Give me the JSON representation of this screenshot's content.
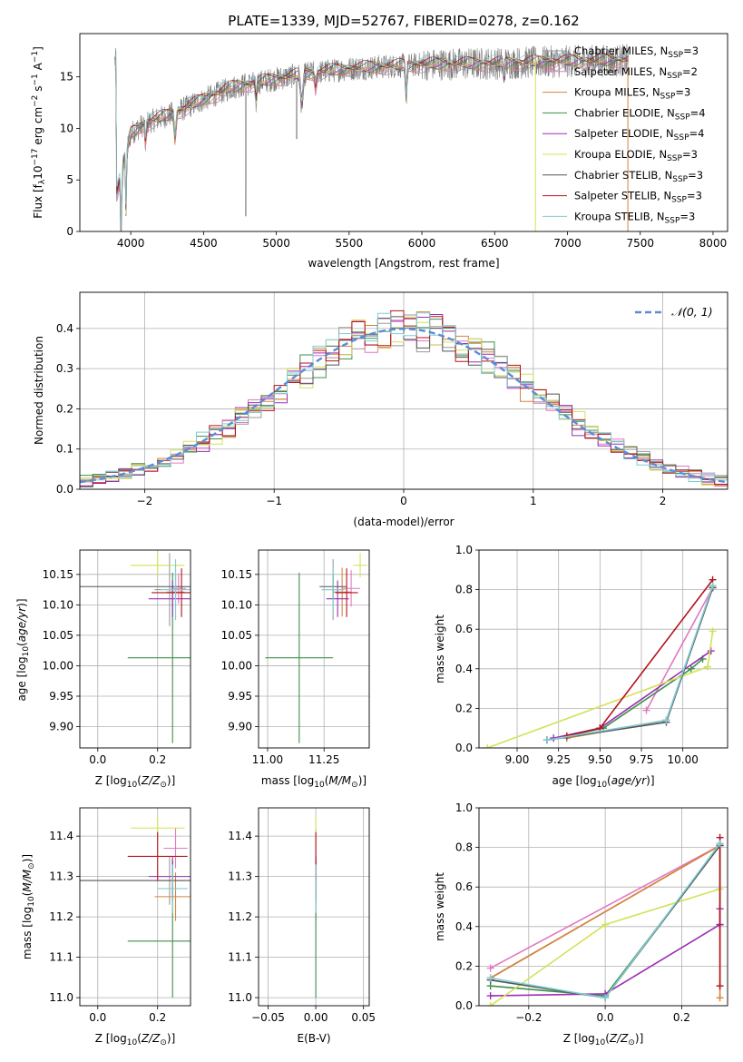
{
  "figure": {
    "title": "PLATE=1339, MJD=52767, FIBERID=0278, z=0.162"
  },
  "colors": {
    "chabrier_miles": "#9a9a9a",
    "salpeter_miles": "#e377c2",
    "kroupa_miles": "#d6843c",
    "chabrier_elodie": "#3f8f4a",
    "salpeter_elodie": "#9a2fb4",
    "kroupa_elodie": "#d4e157",
    "chabrier_stelib": "#555555",
    "salpeter_stelib": "#b5121b",
    "kroupa_stelib": "#7fcdd6",
    "gauss": "#5b8bd9",
    "grid": "#b0b0b0"
  },
  "chart_data": [
    {
      "id": "spectrum",
      "type": "line",
      "xlabel": "wavelength [Angstrom, rest frame]",
      "ylabel_main": "Flux [f",
      "ylabel_rest": "10",
      "ylim": [
        0,
        19.2
      ],
      "xlim": [
        3650,
        8100
      ],
      "xticks": [
        4000,
        4500,
        5000,
        5500,
        6000,
        6500,
        7000,
        7500,
        8000
      ],
      "yticks": [
        0,
        5,
        10,
        15
      ],
      "grid": false,
      "legend_position": "right",
      "legend": [
        {
          "name": "Chabrier MILES",
          "nssp": "3",
          "color_key": "chabrier_miles"
        },
        {
          "name": "Salpeter MILES",
          "nssp": "2",
          "color_key": "salpeter_miles"
        },
        {
          "name": "Kroupa MILES",
          "nssp": "3",
          "color_key": "kroupa_miles"
        },
        {
          "name": "Chabrier ELODIE",
          "nssp": "4",
          "color_key": "chabrier_elodie"
        },
        {
          "name": "Salpeter ELODIE",
          "nssp": "4",
          "color_key": "salpeter_elodie"
        },
        {
          "name": "Kroupa ELODIE",
          "nssp": "3",
          "color_key": "kroupa_elodie"
        },
        {
          "name": "Chabrier STELIB",
          "nssp": "3",
          "color_key": "chabrier_stelib"
        },
        {
          "name": "Salpeter STELIB",
          "nssp": "3",
          "color_key": "salpeter_stelib"
        },
        {
          "name": "Kroupa STELIB",
          "nssp": "3",
          "color_key": "kroupa_stelib"
        }
      ],
      "continuum": [
        [
          3900,
          3.5
        ],
        [
          3950,
          6.5
        ],
        [
          4000,
          9.5
        ],
        [
          4100,
          10.5
        ],
        [
          4300,
          11.5
        ],
        [
          4500,
          12.8
        ],
        [
          4700,
          14.0
        ],
        [
          5000,
          14.8
        ],
        [
          5200,
          15.3
        ],
        [
          5500,
          15.8
        ],
        [
          6000,
          16.2
        ],
        [
          6500,
          16.3
        ],
        [
          7000,
          16.5
        ],
        [
          7400,
          16.6
        ]
      ]
    },
    {
      "id": "residuals",
      "type": "line",
      "xlabel": "(data-model)/error",
      "ylabel": "Normed distribution",
      "xlim": [
        -2.5,
        2.5
      ],
      "ylim": [
        0,
        0.49
      ],
      "xticks": [
        -2,
        -1,
        0,
        1,
        2
      ],
      "yticks": [
        0.0,
        0.1,
        0.2,
        0.3,
        0.4
      ],
      "grid": true,
      "legend_position": "top-right",
      "legend_label": "𝒩(0, 1)",
      "gauss_mu": 0,
      "gauss_sigma": 1,
      "bin_width": 0.1
    },
    {
      "id": "age_vs_Z",
      "type": "scatter",
      "xlabel": "Z [log",
      "ylabel": "age  [log",
      "xlim": [
        -0.06,
        0.31
      ],
      "ylim": [
        9.865,
        10.19
      ],
      "xticks": [
        0.0,
        0.2
      ],
      "yticks": [
        9.9,
        9.95,
        10.0,
        10.05,
        10.1,
        10.15
      ],
      "grid": true,
      "points": [
        {
          "color_key": "chabrier_miles",
          "x": 0.24,
          "xerr": 0.05,
          "y": 10.125,
          "yerr": 0.06
        },
        {
          "color_key": "salpeter_miles",
          "x": 0.27,
          "xerr": 0.025,
          "y": 10.127,
          "yerr": 0.025
        },
        {
          "color_key": "kroupa_miles",
          "x": 0.26,
          "xerr": 0.03,
          "y": 10.121,
          "yerr": 0.045
        },
        {
          "color_key": "chabrier_elodie",
          "x": 0.25,
          "xerr": 0.15,
          "y": 10.013,
          "yerr": 0.14
        },
        {
          "color_key": "salpeter_elodie",
          "x": 0.25,
          "xerr": 0.08,
          "y": 10.11,
          "yerr": 0.03
        },
        {
          "color_key": "kroupa_elodie",
          "x": 0.2,
          "xerr": 0.09,
          "y": 10.165,
          "yerr": 0.02
        },
        {
          "color_key": "chabrier_stelib",
          "x": 0.26,
          "xerr": 0.42,
          "y": 10.13,
          "yerr": 0.02
        },
        {
          "color_key": "salpeter_stelib",
          "x": 0.28,
          "xerr": 0.1,
          "y": 10.12,
          "yerr": 0.04
        },
        {
          "color_key": "kroupa_stelib",
          "x": 0.26,
          "xerr": 0.05,
          "y": 10.125,
          "yerr": 0.05
        }
      ]
    },
    {
      "id": "age_vs_mass",
      "type": "scatter",
      "xlabel": "mass [log",
      "xlim": [
        10.96,
        11.45
      ],
      "ylim": [
        9.865,
        10.19
      ],
      "xticks": [
        11.0,
        11.25
      ],
      "yticks": [
        9.9,
        9.95,
        10.0,
        10.05,
        10.1,
        10.15
      ],
      "grid": true,
      "points": [
        {
          "color_key": "chabrier_miles",
          "x": 11.29,
          "xerr": 0.05,
          "y": 10.125,
          "yerr": 0.05
        },
        {
          "color_key": "salpeter_miles",
          "x": 11.37,
          "xerr": 0.04,
          "y": 10.127,
          "yerr": 0.03
        },
        {
          "color_key": "kroupa_miles",
          "x": 11.33,
          "xerr": 0.04,
          "y": 10.121,
          "yerr": 0.04
        },
        {
          "color_key": "chabrier_elodie",
          "x": 11.14,
          "xerr": 0.15,
          "y": 10.013,
          "yerr": 0.14
        },
        {
          "color_key": "salpeter_elodie",
          "x": 11.31,
          "xerr": 0.05,
          "y": 10.11,
          "yerr": 0.03
        },
        {
          "color_key": "kroupa_elodie",
          "x": 11.41,
          "xerr": 0.03,
          "y": 10.165,
          "yerr": 0.02
        },
        {
          "color_key": "chabrier_stelib",
          "x": 11.29,
          "xerr": 0.06,
          "y": 10.13,
          "yerr": 0.02
        },
        {
          "color_key": "salpeter_stelib",
          "x": 11.35,
          "xerr": 0.05,
          "y": 10.12,
          "yerr": 0.04
        },
        {
          "color_key": "kroupa_stelib",
          "x": 11.29,
          "xerr": 0.05,
          "y": 10.125,
          "yerr": 0.04
        }
      ]
    },
    {
      "id": "weight_vs_age",
      "type": "line",
      "xlabel": "age  [log",
      "ylabel": "mass weight",
      "xlim": [
        8.77,
        10.27
      ],
      "ylim": [
        0,
        1.0
      ],
      "xticks": [
        9.0,
        9.25,
        9.5,
        9.75,
        10.0
      ],
      "yticks": [
        0.0,
        0.2,
        0.4,
        0.6,
        0.8,
        1.0
      ],
      "grid": true,
      "series": [
        {
          "color_key": "chabrier_miles",
          "x": [
            9.3,
            9.9,
            10.18
          ],
          "y": [
            0.05,
            0.14,
            0.81
          ]
        },
        {
          "color_key": "salpeter_miles",
          "x": [
            9.78,
            10.18
          ],
          "y": [
            0.19,
            0.81
          ]
        },
        {
          "color_key": "kroupa_miles",
          "x": [
            9.3,
            9.9,
            10.18
          ],
          "y": [
            0.05,
            0.14,
            0.81
          ]
        },
        {
          "color_key": "chabrier_elodie",
          "x": [
            9.18,
            9.52,
            10.05,
            10.12
          ],
          "y": [
            0.04,
            0.1,
            0.4,
            0.45
          ]
        },
        {
          "color_key": "salpeter_elodie",
          "x": [
            9.22,
            9.5,
            10.17
          ],
          "y": [
            0.05,
            0.1,
            0.49
          ]
        },
        {
          "color_key": "kroupa_elodie",
          "x": [
            8.82,
            10.15,
            10.18
          ],
          "y": [
            0.0,
            0.41,
            0.59
          ]
        },
        {
          "color_key": "chabrier_stelib",
          "x": [
            9.18,
            9.9,
            10.18
          ],
          "y": [
            0.04,
            0.13,
            0.81
          ]
        },
        {
          "color_key": "salpeter_stelib",
          "x": [
            9.3,
            9.5,
            10.18
          ],
          "y": [
            0.06,
            0.1,
            0.85
          ]
        },
        {
          "color_key": "kroupa_stelib",
          "x": [
            9.18,
            9.9,
            10.18
          ],
          "y": [
            0.04,
            0.14,
            0.82
          ]
        }
      ]
    },
    {
      "id": "mass_vs_Z",
      "type": "scatter",
      "xlabel": "Z [log",
      "ylabel": "mass [log",
      "xlim": [
        -0.06,
        0.31
      ],
      "ylim": [
        10.98,
        11.47
      ],
      "xticks": [
        0.0,
        0.2
      ],
      "yticks": [
        11.0,
        11.1,
        11.2,
        11.3,
        11.4
      ],
      "grid": true,
      "points": [
        {
          "color_key": "chabrier_miles",
          "x": 0.24,
          "xerr": 0.05,
          "y": 11.29,
          "yerr": 0.06
        },
        {
          "color_key": "salpeter_miles",
          "x": 0.26,
          "xerr": 0.04,
          "y": 11.37,
          "yerr": 0.05
        },
        {
          "color_key": "kroupa_miles",
          "x": 0.26,
          "xerr": 0.07,
          "y": 11.25,
          "yerr": 0.06
        },
        {
          "color_key": "chabrier_elodie",
          "x": 0.25,
          "xerr": 0.15,
          "y": 11.14,
          "yerr": 0.14
        },
        {
          "color_key": "salpeter_elodie",
          "x": 0.25,
          "xerr": 0.08,
          "y": 11.3,
          "yerr": 0.05
        },
        {
          "color_key": "kroupa_elodie",
          "x": 0.2,
          "xerr": 0.09,
          "y": 11.42,
          "yerr": 0.03
        },
        {
          "color_key": "chabrier_stelib",
          "x": 0.25,
          "xerr": 0.42,
          "y": 11.29,
          "yerr": 0.05
        },
        {
          "color_key": "salpeter_stelib",
          "x": 0.2,
          "xerr": 0.1,
          "y": 11.35,
          "yerr": 0.06
        },
        {
          "color_key": "kroupa_stelib",
          "x": 0.25,
          "xerr": 0.05,
          "y": 11.27,
          "yerr": 0.06
        }
      ]
    },
    {
      "id": "mass_vs_ebv",
      "type": "scatter",
      "xlabel": "E(B-V)",
      "xlim": [
        -0.06,
        0.056
      ],
      "ylim": [
        10.98,
        11.47
      ],
      "xticks": [
        -0.05,
        0.0,
        0.05
      ],
      "xtick_labels": [
        "−0.05",
        "0.00",
        "0.05"
      ],
      "yticks": [
        11.0,
        11.1,
        11.2,
        11.3,
        11.4
      ],
      "grid": true,
      "points": [
        {
          "color_key": "chabrier_miles",
          "x": 0.0,
          "y": 11.29,
          "yerr": 0.06
        },
        {
          "color_key": "salpeter_miles",
          "x": 0.0,
          "y": 11.37,
          "yerr": 0.05
        },
        {
          "color_key": "kroupa_miles",
          "x": 0.0,
          "y": 11.25,
          "yerr": 0.06
        },
        {
          "color_key": "chabrier_elodie",
          "x": 0.0,
          "y": 11.14,
          "yerr": 0.14
        },
        {
          "color_key": "salpeter_elodie",
          "x": 0.0,
          "y": 11.3,
          "yerr": 0.05
        },
        {
          "color_key": "kroupa_elodie",
          "x": 0.0,
          "y": 11.42,
          "yerr": 0.03
        },
        {
          "color_key": "chabrier_stelib",
          "x": 0.0,
          "y": 11.29,
          "yerr": 0.05
        },
        {
          "color_key": "salpeter_stelib",
          "x": 0.0,
          "y": 11.35,
          "yerr": 0.06
        },
        {
          "color_key": "kroupa_stelib",
          "x": 0.0,
          "y": 11.27,
          "yerr": 0.06
        }
      ]
    },
    {
      "id": "weight_vs_Z",
      "type": "line",
      "xlabel": "Z [log",
      "ylabel": "mass weight",
      "xlim": [
        -0.33,
        0.32
      ],
      "ylim": [
        0,
        1.0
      ],
      "xticks": [
        -0.2,
        0.0,
        0.2
      ],
      "xtick_labels": [
        "−0.2",
        "0.0",
        "0.2"
      ],
      "yticks": [
        0.0,
        0.2,
        0.4,
        0.6,
        0.8,
        1.0
      ],
      "grid": true,
      "series": [
        {
          "color_key": "chabrier_miles",
          "x": [
            -0.3,
            0.3
          ],
          "y": [
            0.14,
            0.81
          ]
        },
        {
          "color_key": "salpeter_miles",
          "x": [
            -0.3,
            0.3
          ],
          "y": [
            0.19,
            0.81
          ]
        },
        {
          "color_key": "kroupa_miles",
          "x": [
            -0.3,
            0.3,
            0.3
          ],
          "y": [
            0.14,
            0.81,
            0.04
          ]
        },
        {
          "color_key": "chabrier_elodie",
          "x": [
            -0.3,
            0.0,
            0.3,
            0.3
          ],
          "y": [
            0.1,
            0.05,
            0.81,
            0.41
          ]
        },
        {
          "color_key": "salpeter_elodie",
          "x": [
            -0.3,
            0.0,
            0.3,
            0.3
          ],
          "y": [
            0.05,
            0.06,
            0.41,
            0.49
          ]
        },
        {
          "color_key": "kroupa_elodie",
          "x": [
            -0.3,
            0.0,
            0.3
          ],
          "y": [
            0.0,
            0.41,
            0.59
          ]
        },
        {
          "color_key": "chabrier_stelib",
          "x": [
            -0.3,
            0.0,
            0.3
          ],
          "y": [
            0.13,
            0.04,
            0.81
          ]
        },
        {
          "color_key": "salpeter_stelib",
          "x": [
            0.3,
            0.3
          ],
          "y": [
            0.1,
            0.85
          ]
        },
        {
          "color_key": "kroupa_stelib",
          "x": [
            -0.3,
            0.0,
            0.3
          ],
          "y": [
            0.14,
            0.04,
            0.82
          ]
        }
      ]
    }
  ]
}
